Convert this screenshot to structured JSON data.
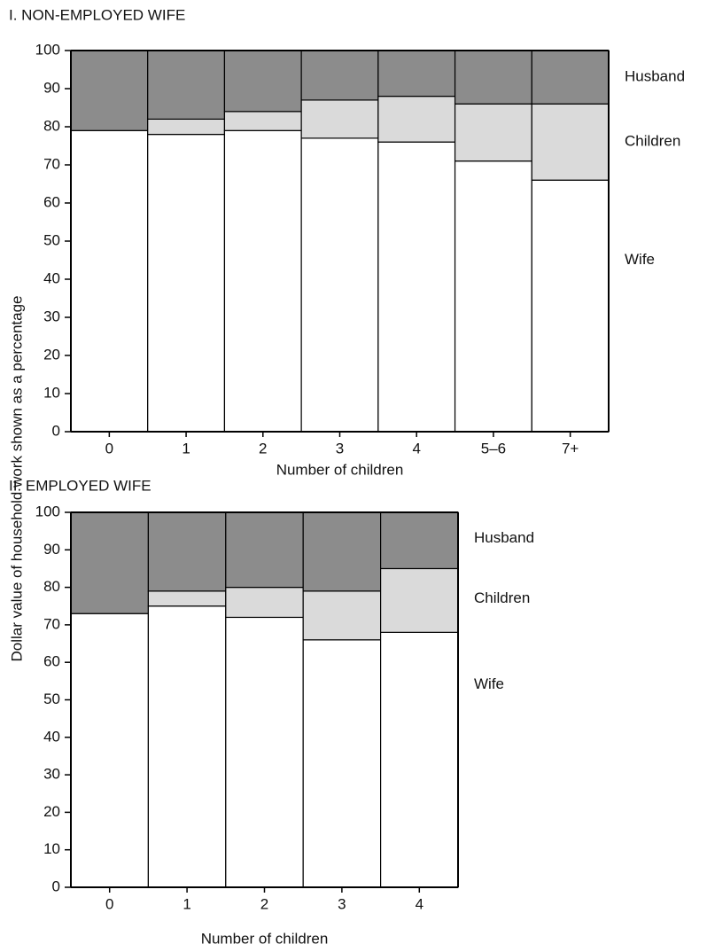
{
  "chart_data": [
    {
      "type": "stacked_bar",
      "title": "I. NON-EMPLOYED WIFE",
      "ylabel": "Dollar value of household work shown as a percentage",
      "xlabel": "Number of children",
      "categories": [
        "0",
        "1",
        "2",
        "3",
        "4",
        "5–6",
        "7+"
      ],
      "series": [
        {
          "name": "Wife",
          "color": "#ffffff",
          "values": [
            79,
            78,
            79,
            77,
            76,
            71,
            66
          ]
        },
        {
          "name": "Children",
          "color": "#dadada",
          "values": [
            0,
            4,
            5,
            10,
            12,
            15,
            20
          ]
        },
        {
          "name": "Husband",
          "color": "#8c8c8c",
          "values": [
            21,
            18,
            16,
            13,
            12,
            14,
            14
          ]
        }
      ],
      "ylim": [
        0,
        100
      ],
      "yticks": [
        0,
        10,
        20,
        30,
        40,
        50,
        60,
        70,
        80,
        90,
        100
      ]
    },
    {
      "type": "stacked_bar",
      "title": "II. EMPLOYED WIFE",
      "xlabel": "Number of children",
      "categories": [
        "0",
        "1",
        "2",
        "3",
        "4"
      ],
      "series": [
        {
          "name": "Wife",
          "color": "#ffffff",
          "values": [
            73,
            75,
            72,
            66,
            68
          ]
        },
        {
          "name": "Children",
          "color": "#dadada",
          "values": [
            0,
            4,
            8,
            13,
            17
          ]
        },
        {
          "name": "Husband",
          "color": "#8c8c8c",
          "values": [
            27,
            21,
            20,
            21,
            15
          ]
        }
      ],
      "ylim": [
        0,
        100
      ],
      "yticks": [
        0,
        10,
        20,
        30,
        40,
        50,
        60,
        70,
        80,
        90,
        100
      ]
    }
  ]
}
